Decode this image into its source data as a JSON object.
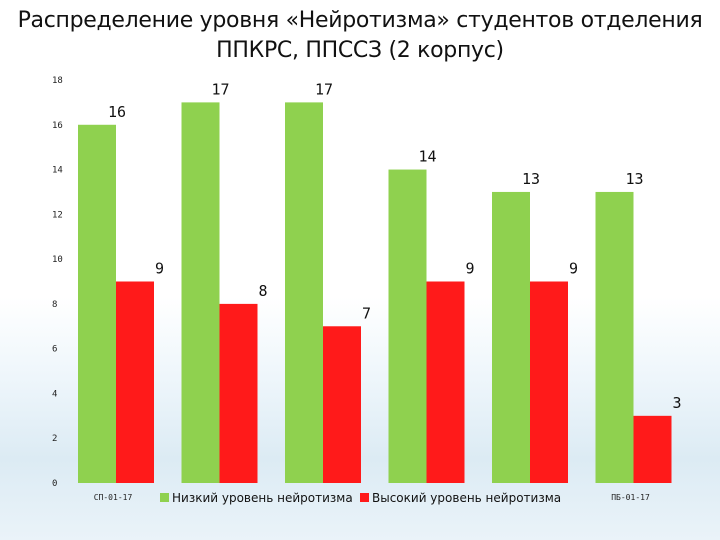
{
  "chart_data": {
    "type": "bar",
    "title_line1": "Распределение уровня «Нейротизма» студентов отделения",
    "title_line2": "ППКРС, ППССЗ (2 корпус)",
    "xlabel": "",
    "ylabel": "",
    "ylim": [
      0,
      18
    ],
    "yticks": [
      0,
      2,
      4,
      6,
      8,
      10,
      12,
      14,
      16,
      18
    ],
    "categories": [
      "СП-01-17",
      "",
      "",
      "",
      "",
      "ПБ-01-17"
    ],
    "series": [
      {
        "name": "Низкий уровень нейротизма",
        "color": "#8fd14f",
        "values": [
          16,
          17,
          17,
          14,
          13,
          13
        ]
      },
      {
        "name": "Высокий уровень нейротизма",
        "color": "#ff1a1a",
        "values": [
          9,
          8,
          7,
          9,
          9,
          3
        ]
      }
    ],
    "legend": "bottom",
    "grid": false
  }
}
